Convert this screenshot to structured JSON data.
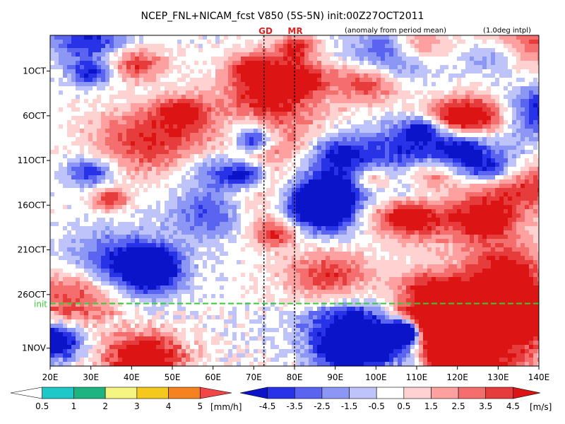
{
  "chart_data": {
    "type": "heatmap",
    "title": "NCEP_FNL+NICAM_fcst V850 (5S-5N) init:00Z27OCT2011",
    "annotations": {
      "anomaly": "(anomaly from period mean)",
      "interp": "(1.0deg intpl)",
      "init_label": "init",
      "markers": [
        {
          "label": "GD",
          "lon": 72.5
        },
        {
          "label": "MR",
          "lon": 80
        }
      ]
    },
    "x": {
      "range": [
        20,
        140
      ],
      "ticks": [
        20,
        30,
        40,
        50,
        60,
        70,
        80,
        90,
        100,
        110,
        120,
        130,
        140
      ],
      "tick_labels": [
        "20E",
        "30E",
        "40E",
        "50E",
        "60E",
        "70E",
        "80E",
        "90E",
        "100E",
        "110E",
        "120E",
        "130E",
        "140E"
      ]
    },
    "y": {
      "range_days": [
        "27SEP2011",
        "03NOV2011"
      ],
      "ticks": [
        {
          "label": "1OCT",
          "day": 4
        },
        {
          "label": "6OCT",
          "day": 9
        },
        {
          "label": "11OCT",
          "day": 14
        },
        {
          "label": "16OCT",
          "day": 19
        },
        {
          "label": "21OCT",
          "day": 24
        },
        {
          "label": "26OCT",
          "day": 29
        },
        {
          "label": "1NOV",
          "day": 35
        }
      ],
      "init_day": 30
    },
    "wind_colorbar": {
      "unit": "[m/s]",
      "labels": [
        "-4.5",
        "-3.5",
        "-2.5",
        "-1.5",
        "-0.5",
        "0.5",
        "1.5",
        "2.5",
        "3.5",
        "4.5"
      ],
      "colors": [
        "#0b14c8",
        "#2832e6",
        "#5a64f0",
        "#8c96f5",
        "#bec3fa",
        "#ffffff",
        "#ffd2d2",
        "#ffa0a0",
        "#f56e6e",
        "#e63c3c",
        "#dc1414"
      ]
    },
    "rain_colorbar": {
      "unit": "[mm/h]",
      "labels": [
        "0.5",
        "1",
        "2",
        "3",
        "4",
        "5"
      ],
      "colors": [
        "#ffffff",
        "#1ec8c8",
        "#1eb482",
        "#f5f582",
        "#f5c81e",
        "#f5821e",
        "#f04646"
      ]
    },
    "series": []
  }
}
